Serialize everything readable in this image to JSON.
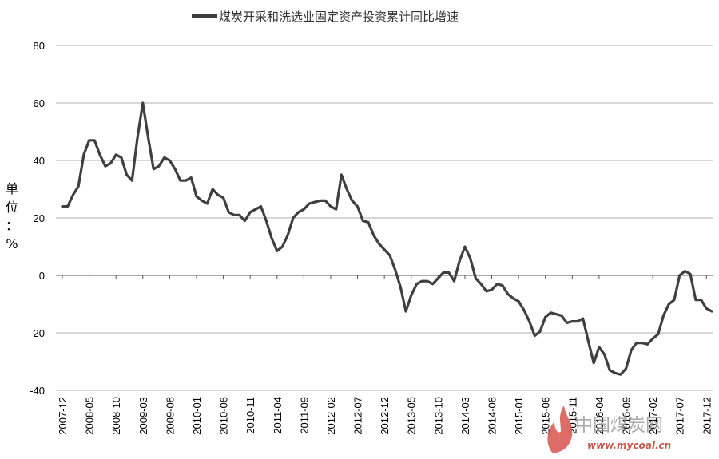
{
  "chart_data": {
    "type": "line",
    "title": "",
    "legend": {
      "placement": "top",
      "entries": [
        "煤炭开采和洗选业固定资产投资累计同比增速"
      ]
    },
    "ylabel": "单位：%",
    "xlabel": "",
    "ylim": [
      -40,
      80
    ],
    "yticks": [
      -40,
      -20,
      0,
      20,
      40,
      60,
      80
    ],
    "grid": true,
    "x_tick_labels": [
      "2007-12",
      "2008-05",
      "2008-10",
      "2009-03",
      "2009-08",
      "2010-01",
      "2010-06",
      "2010-11",
      "2011-04",
      "2011-09",
      "2012-02",
      "2012-07",
      "2012-12",
      "2013-05",
      "2013-10",
      "2014-03",
      "2014-08",
      "2015-01",
      "2015-06",
      "2015-11",
      "2016-04",
      "2016-09",
      "2017-02",
      "2017-07",
      "2017-12"
    ],
    "series": [
      {
        "name": "煤炭开采和洗选业固定资产投资累计同比增速",
        "color": "#3f3f3f",
        "values": [
          24,
          24,
          28,
          31,
          42,
          47,
          47,
          42,
          38,
          39,
          42,
          41,
          35,
          33,
          48,
          60,
          48,
          37,
          38,
          41,
          40,
          37,
          33,
          33,
          34,
          27.5,
          26,
          25,
          30,
          28,
          27,
          22,
          21,
          21,
          19,
          22,
          23,
          24,
          19,
          13,
          8.5,
          10,
          14,
          20,
          22,
          23,
          25,
          25.5,
          26,
          26,
          24,
          23,
          35,
          30,
          26,
          24,
          19,
          18.5,
          14,
          11,
          9,
          7,
          2,
          -4,
          -12.5,
          -7,
          -3,
          -2,
          -2,
          -3,
          -1,
          1,
          1,
          -2,
          5,
          10,
          6,
          -1,
          -3,
          -5.5,
          -5,
          -3,
          -3.5,
          -6.5,
          -8,
          -9,
          -12,
          -16,
          -21,
          -19.5,
          -14.5,
          -13,
          -13.5,
          -14,
          -16.5,
          -16,
          -16,
          -15,
          -23,
          -30.5,
          -25,
          -27.5,
          -33,
          -34,
          -34.5,
          -32.5,
          -26,
          -23.5,
          -23.5,
          -24,
          -22,
          -20.5,
          -14,
          -10,
          -8.5,
          0,
          1.5,
          0.5,
          -8.5,
          -8.5,
          -11.5,
          -12.5
        ]
      }
    ]
  },
  "watermark": {
    "text": "中国煤炭网",
    "url": "www.mycoal.cn",
    "icon": "flame-logo-icon"
  }
}
